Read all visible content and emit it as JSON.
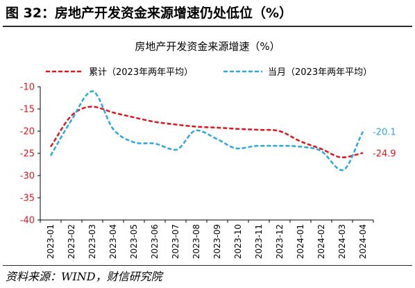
{
  "figure": {
    "title": "图 32：房地产开发资金来源增速仍处低位（%）",
    "source": "资料来源：WIND，财信研究院"
  },
  "colors": {
    "series1": "#e0141e",
    "series2": "#29a8e0",
    "axis": "#000000",
    "tick_label": "#e0141e"
  },
  "chart_data": {
    "type": "line",
    "title": "房地产开发资金来源增速（%）",
    "xlabel": "",
    "ylabel": "",
    "ylim": [
      -40,
      -10
    ],
    "yticks": [
      -10,
      -15,
      -20,
      -25,
      -30,
      -35,
      -40
    ],
    "grid": false,
    "legend_position": "top",
    "categories": [
      "2023-01",
      "2023-02",
      "2023-03",
      "2023-04",
      "2023-05",
      "2023-06",
      "2023-07",
      "2023-08",
      "2023-09",
      "2023-10",
      "2023-11",
      "2023-12",
      "2024-01",
      "2024-02",
      "2024-03",
      "2024-04"
    ],
    "series": [
      {
        "name": "累计（2023年两年平均）",
        "style": "dashed",
        "values": [
          -23.5,
          -16.5,
          -14.5,
          -15.8,
          -16.9,
          -17.9,
          -18.5,
          -19.0,
          -19.2,
          -19.5,
          -19.7,
          -20.0,
          -22.3,
          -24.0,
          -25.9,
          -24.9
        ],
        "end_label": "-24.9"
      },
      {
        "name": "当月（2023年两年平均）",
        "style": "dashed",
        "values": [
          -25.5,
          -17.5,
          -11.0,
          -19.5,
          -22.5,
          -22.8,
          -24.2,
          -19.8,
          -21.8,
          -23.9,
          -23.3,
          -23.3,
          -23.5,
          -24.5,
          -28.8,
          -20.1
        ],
        "end_label": "-20.1"
      }
    ]
  }
}
